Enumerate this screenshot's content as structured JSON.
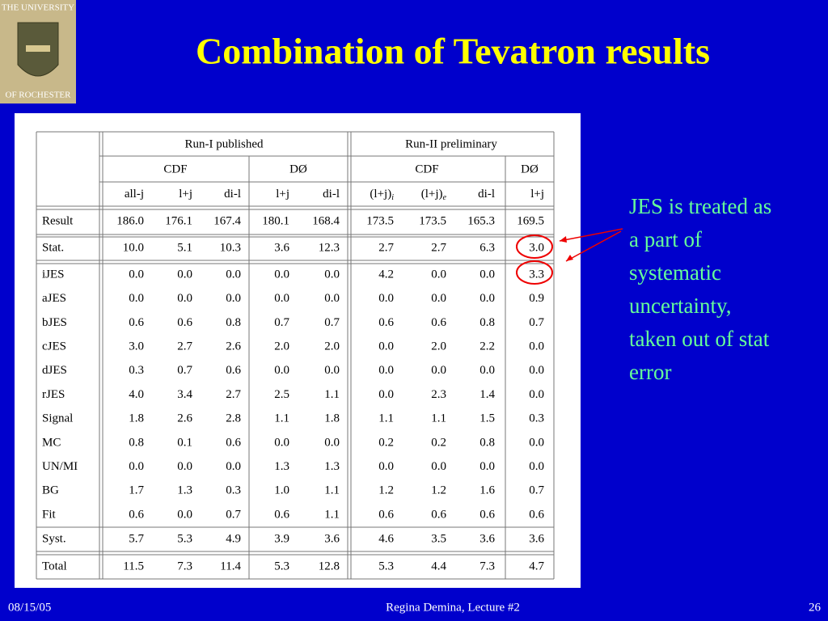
{
  "header": {
    "title": "Combination of Tevatron results"
  },
  "logo": {
    "top": "THE UNIVERSITY",
    "bottom": "OF ROCHESTER"
  },
  "table": {
    "groups": [
      "Run-I published",
      "Run-II preliminary"
    ],
    "experiments": [
      "CDF",
      "DØ",
      "CDF",
      "DØ"
    ],
    "columns": [
      {
        "text": "all-j"
      },
      {
        "text": "l+j"
      },
      {
        "text": "di-l"
      },
      {
        "text": "l+j"
      },
      {
        "text": "di-l"
      },
      {
        "text": "(l+j)",
        "sub": "i"
      },
      {
        "text": "(l+j)",
        "sub": "e"
      },
      {
        "text": "di-l"
      },
      {
        "text": "l+j"
      }
    ],
    "rows": [
      {
        "label": "Result",
        "values": [
          "186.0",
          "176.1",
          "167.4",
          "180.1",
          "168.4",
          "173.5",
          "173.5",
          "165.3",
          "169.5"
        ]
      },
      {
        "label": "Stat.",
        "values": [
          "10.0",
          "5.1",
          "10.3",
          "3.6",
          "12.3",
          "2.7",
          "2.7",
          "6.3",
          "3.0"
        ]
      },
      {
        "label": "iJES",
        "values": [
          "0.0",
          "0.0",
          "0.0",
          "0.0",
          "0.0",
          "4.2",
          "0.0",
          "0.0",
          "3.3"
        ]
      },
      {
        "label": "aJES",
        "values": [
          "0.0",
          "0.0",
          "0.0",
          "0.0",
          "0.0",
          "0.0",
          "0.0",
          "0.0",
          "0.9"
        ]
      },
      {
        "label": "bJES",
        "values": [
          "0.6",
          "0.6",
          "0.8",
          "0.7",
          "0.7",
          "0.6",
          "0.6",
          "0.8",
          "0.7"
        ]
      },
      {
        "label": "cJES",
        "values": [
          "3.0",
          "2.7",
          "2.6",
          "2.0",
          "2.0",
          "0.0",
          "2.0",
          "2.2",
          "0.0"
        ]
      },
      {
        "label": "dJES",
        "values": [
          "0.3",
          "0.7",
          "0.6",
          "0.0",
          "0.0",
          "0.0",
          "0.0",
          "0.0",
          "0.0"
        ]
      },
      {
        "label": "rJES",
        "values": [
          "4.0",
          "3.4",
          "2.7",
          "2.5",
          "1.1",
          "0.0",
          "2.3",
          "1.4",
          "0.0"
        ]
      },
      {
        "label": "Signal",
        "values": [
          "1.8",
          "2.6",
          "2.8",
          "1.1",
          "1.8",
          "1.1",
          "1.1",
          "1.5",
          "0.3"
        ]
      },
      {
        "label": "MC",
        "values": [
          "0.8",
          "0.1",
          "0.6",
          "0.0",
          "0.0",
          "0.2",
          "0.2",
          "0.8",
          "0.0"
        ]
      },
      {
        "label": "UN/MI",
        "values": [
          "0.0",
          "0.0",
          "0.0",
          "1.3",
          "1.3",
          "0.0",
          "0.0",
          "0.0",
          "0.0"
        ]
      },
      {
        "label": "BG",
        "values": [
          "1.7",
          "1.3",
          "0.3",
          "1.0",
          "1.1",
          "1.2",
          "1.2",
          "1.6",
          "0.7"
        ]
      },
      {
        "label": "Fit",
        "values": [
          "0.6",
          "0.0",
          "0.7",
          "0.6",
          "1.1",
          "0.6",
          "0.6",
          "0.6",
          "0.6"
        ]
      },
      {
        "label": "Syst.",
        "values": [
          "5.7",
          "5.3",
          "4.9",
          "3.9",
          "3.6",
          "4.6",
          "3.5",
          "3.6",
          "3.6"
        ]
      },
      {
        "label": "Total",
        "values": [
          "11.5",
          "7.3",
          "11.4",
          "5.3",
          "12.8",
          "5.3",
          "4.4",
          "7.3",
          "4.7"
        ]
      }
    ]
  },
  "note": {
    "lines": [
      "JES is treated as",
      "a part of",
      "systematic",
      "uncertainty,",
      "taken out of stat",
      "error"
    ]
  },
  "footer": {
    "date": "08/15/05",
    "author": "Regina Demina, Lecture #2",
    "page": "26"
  }
}
